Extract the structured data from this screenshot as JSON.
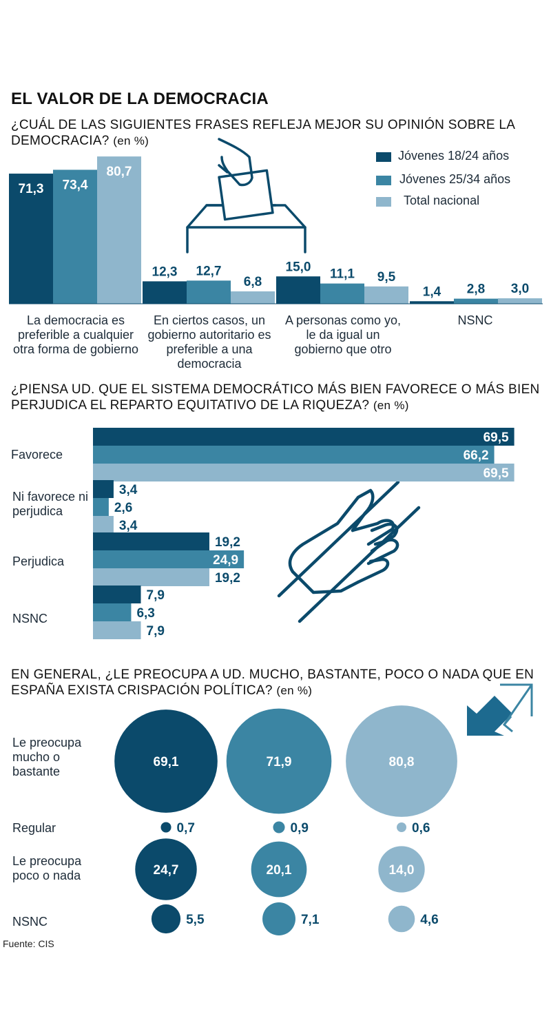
{
  "title": "EL VALOR DE LA DEMOCRACIA",
  "source": "Fuente: CIS",
  "colors": {
    "s1": "#0b4a6b",
    "s2": "#3b85a3",
    "s3": "#8fb6cc"
  },
  "chart_data": [
    {
      "type": "bar",
      "question": "¿CUÁL DE LAS SIGUIENTES FRASES REFLEJA MEJOR SU OPINIÓN SOBRE LA DEMOCRACIA?",
      "unit": "(en %)",
      "categories": [
        "La democracia es preferible a cualquier otra forma de gobierno",
        "En ciertos casos, un gobierno autoritario es preferible a una democracia",
        "A personas como yo, le da igual un gobierno que otro",
        "NSNC"
      ],
      "series": [
        {
          "name": "Jóvenes 18/24 años",
          "values": [
            71.3,
            12.3,
            15.0,
            1.4
          ],
          "labels": [
            "71,3",
            "12,3",
            "15,0",
            "1,4"
          ]
        },
        {
          "name": "Jóvenes 25/34 años",
          "values": [
            73.4,
            12.7,
            11.1,
            2.8
          ],
          "labels": [
            "73,4",
            "12,7",
            "11,1",
            "2,8"
          ]
        },
        {
          "name": "Total nacional",
          "values": [
            80.7,
            6.8,
            9.5,
            3.0
          ],
          "labels": [
            "80,7",
            "6,8",
            "9,5",
            "3,0"
          ]
        }
      ],
      "legend_position": "top-right",
      "grid": false,
      "icon": "ballot-box-icon"
    },
    {
      "type": "bar",
      "orientation": "horizontal",
      "question": "¿PIENSA UD. QUE EL SISTEMA DEMOCRÁTICO MÁS BIEN FAVORECE O MÁS BIEN PERJUDICA EL REPARTO EQUITATIVO DE LA RIQUEZA?",
      "unit": "(en %)",
      "categories": [
        "Favorece",
        "Ni favorece ni perjudica",
        "Perjudica",
        "NSNC"
      ],
      "series": [
        {
          "name": "Jóvenes 18/24 años",
          "values": [
            69.5,
            3.4,
            19.2,
            7.9
          ],
          "labels": [
            "69,5",
            "3,4",
            "19,2",
            "7,9"
          ]
        },
        {
          "name": "Jóvenes 25/34 años",
          "values": [
            66.2,
            2.6,
            24.9,
            6.3
          ],
          "labels": [
            "66,2",
            "2,6",
            "24,9",
            "6,3"
          ]
        },
        {
          "name": "Total nacional",
          "values": [
            69.5,
            3.4,
            19.2,
            7.9
          ],
          "labels": [
            "69,5",
            "3,4",
            "19,2",
            "7,9"
          ]
        }
      ],
      "grid": false,
      "icon": "handshake-pen-icon"
    },
    {
      "type": "bubble",
      "question": "EN GENERAL, ¿LE PREOCUPA A UD. MUCHO, BASTANTE, POCO O NADA QUE EN ESPAÑA EXISTA CRISPACIÓN POLÍTICA?",
      "unit": "(en %)",
      "categories": [
        "Le preocupa mucho o bastante",
        "Regular",
        "Le preocupa poco o nada",
        "NSNC"
      ],
      "series": [
        {
          "name": "Jóvenes 18/24 años",
          "values": [
            69.1,
            0.7,
            24.7,
            5.5
          ],
          "labels": [
            "69,1",
            "0,7",
            "24,7",
            "5,5"
          ]
        },
        {
          "name": "Jóvenes 25/34 años",
          "values": [
            71.9,
            0.9,
            20.1,
            7.1
          ],
          "labels": [
            "71,9",
            "0,9",
            "20,1",
            "7,1"
          ]
        },
        {
          "name": "Total nacional",
          "values": [
            80.8,
            0.6,
            14.0,
            4.6
          ],
          "labels": [
            "80,8",
            "0,6",
            "14,0",
            "4,6"
          ]
        }
      ],
      "icon": "arrows-opposing-icon"
    }
  ]
}
